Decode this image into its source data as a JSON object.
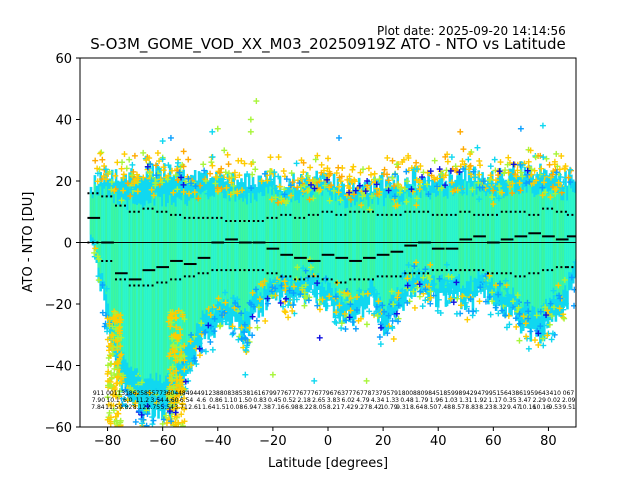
{
  "plot_date": "Plot date: 2025-09-20 14:14:56",
  "chart_data": {
    "type": "scatter",
    "title": "S-O3M_GOME_VOD_XX_M03_20250919Z ATO - NTO vs Latitude",
    "xlabel": "Latitude [degrees]",
    "ylabel": "ATO - NTO [DU]",
    "xlim": [
      -90,
      90
    ],
    "ylim": [
      -60,
      60
    ],
    "xticks": [
      -80,
      -60,
      -40,
      -20,
      0,
      20,
      40,
      60,
      80
    ],
    "yticks": [
      -60,
      -40,
      -20,
      0,
      20,
      40,
      60
    ],
    "grid": false,
    "zero_line": 0,
    "colors": {
      "cloud_core": "#2ef7c8",
      "cloud_light": "#3cf7a0",
      "cyan": "#10d8f0",
      "blue": "#0aa0ff",
      "dark_blue": "#1010e0",
      "yellow_green": "#a8f53a",
      "gold": "#ffcc00",
      "orange": "#ffaa00",
      "mean_marker": "#000000"
    },
    "envelope": {
      "latitude": [
        -86,
        -80,
        -76,
        -70,
        -66,
        -60,
        -56,
        -50,
        -44,
        -40,
        -36,
        -30,
        -26,
        -20,
        -16,
        -10,
        -6,
        0,
        4,
        10,
        16,
        20,
        26,
        30,
        36,
        40,
        46,
        50,
        56,
        60,
        66,
        70,
        76,
        80,
        86,
        90
      ],
      "upper": [
        22,
        26,
        25,
        24,
        27,
        26,
        25,
        24,
        25,
        26,
        25,
        24,
        23,
        24,
        22,
        23,
        24,
        23,
        22,
        21,
        22,
        23,
        22,
        24,
        23,
        25,
        24,
        26,
        25,
        24,
        26,
        27,
        26,
        25,
        24,
        24
      ],
      "lower": [
        -2,
        -28,
        -48,
        -55,
        -60,
        -60,
        -58,
        -42,
        -34,
        -30,
        -28,
        -34,
        -26,
        -22,
        -20,
        -22,
        -18,
        -24,
        -26,
        -28,
        -22,
        -32,
        -26,
        -18,
        -20,
        -22,
        -20,
        -24,
        -20,
        -22,
        -26,
        -30,
        -34,
        -30,
        -24,
        -16
      ]
    },
    "mean_bias": {
      "latitude": [
        -85,
        -80,
        -75,
        -70,
        -65,
        -60,
        -55,
        -50,
        -45,
        -40,
        -35,
        -30,
        -25,
        -20,
        -15,
        -10,
        -5,
        0,
        5,
        10,
        15,
        20,
        25,
        30,
        35,
        40,
        45,
        50,
        55,
        60,
        65,
        70,
        75,
        80,
        85,
        89
      ],
      "mean": [
        8,
        0,
        -10,
        -12,
        -9,
        -8,
        -6,
        -7,
        -5,
        0,
        1,
        0,
        0,
        -2,
        -4,
        -5,
        -6,
        -4,
        -5,
        -6,
        -5,
        -4,
        -3,
        -1,
        0,
        -2,
        -2,
        1,
        2,
        0,
        1,
        2,
        3,
        2,
        1,
        2
      ],
      "upper_bound": [
        16,
        15,
        12,
        10,
        11,
        10,
        9,
        8,
        8,
        8,
        7,
        7,
        7,
        8,
        9,
        8,
        9,
        10,
        9,
        10,
        10,
        9,
        9,
        10,
        10,
        9,
        9,
        10,
        9,
        9,
        10,
        10,
        9,
        11,
        10,
        9
      ],
      "lower_bound": [
        0,
        -6,
        -12,
        -14,
        -14,
        -13,
        -12,
        -11,
        -10,
        -9,
        -9,
        -9,
        -9,
        -10,
        -11,
        -12,
        -11,
        -12,
        -13,
        -12,
        -12,
        -11,
        -11,
        -10,
        -10,
        -9,
        -9,
        -9,
        -9,
        -10,
        -10,
        -11,
        -10,
        -9,
        -8,
        -8
      ]
    },
    "bin_counts_row1": [
      "911",
      "0011",
      "3186",
      "2585",
      "5773",
      "6044",
      "8494",
      "4912",
      "3880",
      "8385",
      "3816",
      "1679",
      "9776",
      "7776",
      "7776",
      "7796",
      "7637",
      "7767",
      "7873",
      "7957",
      "9180",
      "0880",
      "9845",
      "1859",
      "9894",
      "2947",
      "9951",
      "5643",
      "8619",
      "5964",
      "3410",
      "067"
    ],
    "bin_counts_row2": [
      "7.90",
      "10.1",
      "6.0",
      "11.2",
      "3.54",
      "4.60",
      "6.54",
      "4.6",
      "0.86",
      "1.10",
      "1.50",
      "0.83",
      "0.45",
      "0.52",
      "2.18",
      "2.65",
      "3.83",
      "6.02",
      "4.79",
      "4.34",
      "1.33",
      "0.48",
      "1.79",
      "1.96",
      "1.03",
      "1.31",
      "1.92",
      "1.17",
      "0.35",
      "3.47",
      "2.29",
      "0.02",
      "2.09"
    ],
    "bin_counts_row3": [
      "7.84",
      "11.5",
      "9.82",
      "8.12",
      "2.75",
      "5.54",
      "3.71",
      "2.61",
      "1.64",
      "1.51",
      "0.08",
      "6.94",
      "7.38",
      "7.16",
      "6.98",
      "8.22",
      "8.05",
      "8.21",
      "7.42",
      "9.27",
      "8.42",
      "10.79",
      "9.31",
      "8.64",
      "8.50",
      "7.48",
      "8.57",
      "8.83",
      "8.23",
      "8.32",
      "9.47",
      "10.16",
      "10.16",
      "9.53",
      "9.51"
    ]
  }
}
